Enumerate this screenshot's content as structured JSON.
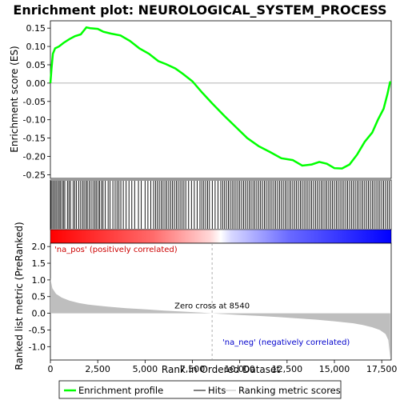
{
  "chart_data": {
    "type": "line",
    "title": "Enrichment plot: NEUROLOGICAL_SYSTEM_PROCESS",
    "top_panel": {
      "ylabel": "Enrichment score (ES)",
      "ylim": [
        -0.26,
        0.17
      ],
      "yticks": [
        0.15,
        0.1,
        0.05,
        0.0,
        -0.05,
        -0.1,
        -0.15,
        -0.2,
        -0.25
      ],
      "ytick_labels": [
        "0.15",
        "0.10",
        "0.05",
        "0.00",
        "-0.05",
        "-0.10",
        "-0.15",
        "-0.20",
        "-0.25"
      ],
      "series": [
        {
          "name": "Enrichment profile",
          "color": "#00ff00",
          "x": [
            0,
            60,
            130,
            250,
            450,
            700,
            1000,
            1300,
            1600,
            1900,
            2100,
            2500,
            2800,
            3200,
            3700,
            4200,
            4700,
            5200,
            5700,
            6100,
            6600,
            7000,
            7500,
            8000,
            8540,
            9200,
            9800,
            10400,
            11000,
            11600,
            12200,
            12800,
            13300,
            13800,
            14200,
            14600,
            15000,
            15400,
            15800,
            16200,
            16600,
            17000,
            17300,
            17600,
            17800,
            17950
          ],
          "y": [
            0.0,
            0.04,
            0.08,
            0.095,
            0.1,
            0.11,
            0.12,
            0.128,
            0.133,
            0.152,
            0.15,
            0.148,
            0.14,
            0.135,
            0.13,
            0.115,
            0.095,
            0.08,
            0.06,
            0.052,
            0.04,
            0.025,
            0.005,
            -0.025,
            -0.055,
            -0.09,
            -0.12,
            -0.15,
            -0.172,
            -0.188,
            -0.205,
            -0.21,
            -0.225,
            -0.222,
            -0.215,
            -0.22,
            -0.232,
            -0.233,
            -0.222,
            -0.195,
            -0.16,
            -0.135,
            -0.1,
            -0.07,
            -0.03,
            0.005
          ]
        }
      ]
    },
    "hits": {
      "name": "Hits",
      "positions": [
        20,
        80,
        150,
        230,
        300,
        380,
        460,
        520,
        610,
        690,
        760,
        900,
        980,
        1060,
        1200,
        1290,
        1380,
        1500,
        1600,
        1700,
        1780,
        1880,
        1950,
        2050,
        2150,
        2250,
        2350,
        2420,
        2520,
        2600,
        2700,
        2780,
        2900,
        3050,
        3150,
        3300,
        3420,
        3520,
        3620,
        3720,
        3850,
        4000,
        4150,
        4300,
        4450,
        4650,
        4800,
        5000,
        5150,
        5300,
        5450,
        5550,
        5650,
        5750,
        5850,
        5950,
        6050,
        6150,
        6250,
        6350,
        6450,
        6550,
        6650,
        6750,
        6850,
        6950,
        7050,
        7150,
        7300,
        7450,
        7600,
        7750,
        7900,
        8000,
        8100,
        8200,
        8300,
        8400,
        8550,
        8700,
        8850,
        9000,
        9100,
        9200,
        9300,
        9400,
        9500,
        9600,
        9700,
        9800,
        9900,
        10000,
        10100,
        10200,
        10300,
        10400,
        10500,
        10600,
        10700,
        10800,
        10900,
        11000,
        11100,
        11200,
        11300,
        11400,
        11500,
        11600,
        11700,
        11800,
        11900,
        12000,
        12100,
        12200,
        12300,
        12400,
        12500,
        12600,
        12700,
        12800,
        12900,
        13000,
        13100,
        13200,
        13300,
        13400,
        13500,
        13600,
        13700,
        13800,
        13900,
        14000,
        14100,
        14200,
        14300,
        14400,
        14500,
        14600,
        14700,
        14800,
        14900,
        15000,
        15100,
        15200,
        15300,
        15400,
        15500,
        15600,
        15700,
        15800,
        15900,
        16000,
        16100,
        16200,
        16300,
        16400,
        16500,
        16600,
        16700,
        16800,
        16900,
        17000,
        17100,
        17200,
        17300,
        17400,
        17500,
        17600,
        17700,
        17800,
        17900
      ]
    },
    "bottom_panel": {
      "xlabel": "Rank in Ordered Dataset",
      "ylabel": "Ranked list metric (PreRanked)",
      "xlim": [
        0,
        18000
      ],
      "ylim": [
        -1.4,
        2.1
      ],
      "xticks": [
        0,
        2500,
        5000,
        7500,
        10000,
        12500,
        15000,
        17500
      ],
      "xtick_labels": [
        "0",
        "2,500",
        "5,000",
        "7,500",
        "10,000",
        "12,500",
        "15,000",
        "17,500"
      ],
      "yticks": [
        2.0,
        1.5,
        1.0,
        0.5,
        0.0,
        -0.5,
        -1.0
      ],
      "ytick_labels": [
        "2.0",
        "1.5",
        "1.0",
        "0.5",
        "0.0",
        "-0.5",
        "-1.0"
      ],
      "series": [
        {
          "name": "Ranking metric scores",
          "color": "#bebebe",
          "x": [
            0,
            100,
            300,
            600,
            1000,
            1500,
            2000,
            3000,
            4000,
            5000,
            6000,
            7000,
            8000,
            8540,
            9000,
            10000,
            11000,
            12000,
            13000,
            14000,
            15000,
            16000,
            16500,
            17000,
            17400,
            17700,
            17850,
            17950
          ],
          "y": [
            1.05,
            0.75,
            0.58,
            0.47,
            0.38,
            0.31,
            0.26,
            0.2,
            0.15,
            0.12,
            0.08,
            0.05,
            0.02,
            0.0,
            -0.02,
            -0.05,
            -0.08,
            -0.11,
            -0.15,
            -0.19,
            -0.24,
            -0.3,
            -0.35,
            -0.42,
            -0.5,
            -0.62,
            -0.8,
            -1.35
          ]
        }
      ],
      "zero_cross_label": "Zero cross at 8540",
      "zero_cross": 8540,
      "pos_label": "'na_pos' (positively correlated)",
      "neg_label": "'na_neg' (negatively correlated)"
    },
    "legend": {
      "placement": "bottom",
      "entries": [
        "Enrichment profile",
        "Hits",
        "Ranking metric scores"
      ]
    },
    "colors": {
      "profile": "#00ff00",
      "hits": "#000000",
      "metric": "#bebebe",
      "pos_label": "#cc0000",
      "neg_label": "#0000cc",
      "bar_pos": "#ff0000",
      "bar_neg": "#0000ff"
    }
  }
}
